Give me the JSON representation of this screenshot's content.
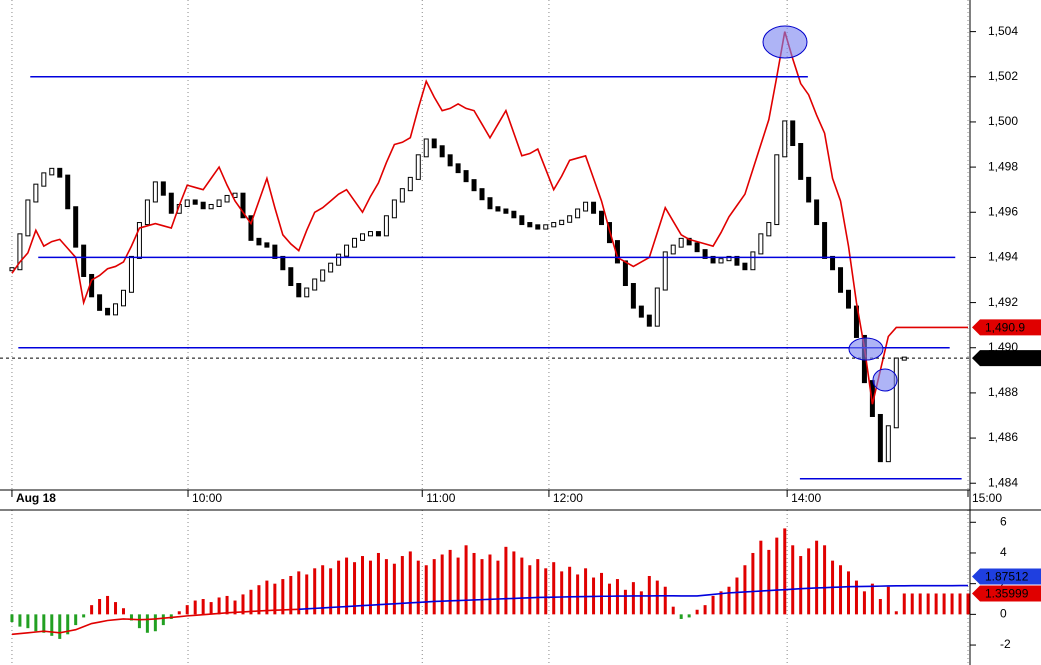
{
  "chart_data": [
    {
      "type": "price",
      "xlim": [
        -1.5,
        120
      ],
      "xticks": [
        {
          "value": 0,
          "label": "Aug 18"
        },
        {
          "value": 22.1,
          "label": "10:00"
        },
        {
          "value": 51.5,
          "label": "11:00"
        },
        {
          "value": 67.4,
          "label": "12:00"
        },
        {
          "value": 97.3,
          "label": "14:00"
        },
        {
          "value": 120,
          "label": "15:00"
        }
      ],
      "ylim": [
        1483.7,
        1505.4
      ],
      "yticks": [
        {
          "value": 1484,
          "label": "1,484"
        },
        {
          "value": 1486,
          "label": "1,486"
        },
        {
          "value": 1488,
          "label": "1,488"
        },
        {
          "value": 1490,
          "label": "1,490"
        },
        {
          "value": 1492,
          "label": "1,492"
        },
        {
          "value": 1494,
          "label": "1,494"
        },
        {
          "value": 1496,
          "label": "1,496"
        },
        {
          "value": 1498,
          "label": "1,498"
        },
        {
          "value": 1500,
          "label": "1,500"
        },
        {
          "value": 1502,
          "label": "1,502"
        },
        {
          "value": 1504,
          "label": "1,504"
        }
      ],
      "series": [
        {
          "style": "candle",
          "color": "#000000",
          "values": [
            1493.5,
            1495.0,
            1496.5,
            1497.2,
            1497.7,
            1497.9,
            1497.6,
            1496.2,
            1494.5,
            1493.2,
            1492.3,
            1491.7,
            1491.5,
            1491.9,
            1492.5,
            1494.0,
            1495.5,
            1496.5,
            1497.3,
            1496.8,
            1496.0,
            1496.3,
            1496.5,
            1496.4,
            1496.2,
            1496.3,
            1496.5,
            1496.7,
            1496.8,
            1495.8,
            1494.8,
            1494.6,
            1494.5,
            1494.0,
            1493.5,
            1492.8,
            1492.3,
            1492.6,
            1493.0,
            1493.4,
            1493.7,
            1494.1,
            1494.5,
            1494.8,
            1495.0,
            1495.1,
            1495.0,
            1495.8,
            1496.5,
            1497.0,
            1497.5,
            1498.5,
            1499.2,
            1498.9,
            1498.5,
            1498.1,
            1497.8,
            1497.4,
            1497.0,
            1496.6,
            1496.2,
            1496.1,
            1496.0,
            1495.8,
            1495.5,
            1495.4,
            1495.3,
            1495.4,
            1495.5,
            1495.6,
            1495.8,
            1496.1,
            1496.4,
            1496.0,
            1495.5,
            1494.7,
            1493.8,
            1492.8,
            1491.8,
            1491.4,
            1491.0,
            1492.6,
            1494.2,
            1494.5,
            1494.8,
            1494.6,
            1494.3,
            1494.0,
            1493.8,
            1493.9,
            1494.0,
            1493.7,
            1493.5,
            1494.2,
            1495.0,
            1495.5,
            1498.5,
            1500.0,
            1499.0,
            1497.5,
            1496.5,
            1495.5,
            1494.0,
            1493.5,
            1492.5,
            1491.8,
            1490.5,
            1488.5,
            1487.0,
            1485.0,
            1486.5,
            1489.5,
            1489.54,
            null,
            null,
            null,
            null,
            null,
            null,
            null,
            null
          ]
        },
        {
          "style": "line",
          "color": "#e00000",
          "values": [
            1493.3,
            1493.8,
            1494.2,
            1495.2,
            1494.5,
            1494.7,
            1494.8,
            1494.4,
            1494.0,
            1492.0,
            1493.0,
            1493.2,
            1493.5,
            1493.6,
            1493.8,
            1494.5,
            1495.3,
            1495.4,
            1495.5,
            1495.4,
            1495.3,
            1496.3,
            1497.2,
            1497.1,
            1497.0,
            1497.5,
            1498.0,
            1497.2,
            1496.5,
            1496.0,
            1495.5,
            1496.5,
            1497.5,
            1496.2,
            1495.0,
            1494.6,
            1494.3,
            1495.2,
            1496.0,
            1496.2,
            1496.5,
            1496.8,
            1497.0,
            1496.5,
            1496.0,
            1496.7,
            1497.3,
            1498.2,
            1499.0,
            1499.1,
            1499.3,
            1500.6,
            1501.8,
            1501.1,
            1500.5,
            1500.6,
            1500.8,
            1500.6,
            1500.5,
            1499.9,
            1499.3,
            1499.9,
            1500.5,
            1499.5,
            1498.5,
            1498.6,
            1498.8,
            1497.9,
            1497.0,
            1497.6,
            1498.3,
            1498.4,
            1498.5,
            1497.5,
            1496.5,
            1495.2,
            1494.0,
            1493.8,
            1493.6,
            1493.8,
            1494.0,
            1495.1,
            1496.2,
            1495.6,
            1495.0,
            1494.8,
            1494.7,
            1494.6,
            1494.5,
            1495.1,
            1495.8,
            1496.3,
            1496.8,
            1497.9,
            1499.0,
            1500.1,
            1502.0,
            1504.0,
            1502.8,
            1501.7,
            1501.2,
            1500.3,
            1499.5,
            1497.5,
            1496.5,
            1494.5,
            1492.0,
            1490.0,
            1487.5,
            1489.0,
            1490.5,
            1490.9,
            1490.9,
            1490.9,
            1490.9,
            1490.9,
            1490.9,
            1490.9,
            1490.9,
            1490.9,
            1490.9
          ]
        }
      ],
      "hlines": [
        {
          "value": 1502,
          "x": [
            2.3,
            99.9
          ],
          "color": "#0000dd"
        },
        {
          "value": 1494,
          "x": [
            3.3,
            118.4
          ],
          "color": "#0000dd"
        },
        {
          "value": 1490,
          "x": [
            0.8,
            117.7
          ],
          "color": "#0000dd"
        },
        {
          "value": 1484.2,
          "x": [
            98.9,
            119.2
          ],
          "color": "#0000dd"
        }
      ],
      "last_labels": [
        {
          "value": 1490.9,
          "label": "1,490.9",
          "color": "#e00000"
        },
        {
          "value": 1489.54,
          "label": "1,489.54",
          "color": "#000000",
          "dashed": true
        }
      ]
    },
    {
      "type": "bar",
      "color": "#e00000",
      "negative_color": "#22a022",
      "ylim": [
        -3.3,
        6.8
      ],
      "yticks": [
        -2,
        0,
        2,
        4,
        6
      ],
      "values": [
        -0.5,
        -0.8,
        -0.9,
        -1.1,
        -1.2,
        -1.4,
        -1.6,
        -1.3,
        -0.7,
        -0.2,
        0.6,
        1.0,
        1.2,
        0.8,
        0.4,
        -0.4,
        -0.9,
        -1.2,
        -1.1,
        -0.7,
        -0.3,
        0.2,
        0.6,
        0.9,
        1.0,
        0.8,
        1.1,
        1.2,
        0.9,
        1.3,
        1.6,
        1.9,
        2.2,
        2.0,
        2.3,
        2.5,
        2.8,
        2.6,
        3.0,
        3.2,
        3.0,
        3.5,
        3.7,
        3.4,
        3.8,
        3.5,
        4.0,
        3.6,
        3.3,
        3.8,
        4.1,
        3.5,
        3.2,
        3.6,
        3.9,
        4.2,
        3.7,
        4.5,
        4.0,
        3.6,
        3.9,
        3.5,
        4.4,
        4.1,
        3.7,
        3.2,
        3.6,
        3.0,
        3.4,
        2.8,
        3.1,
        2.6,
        3.0,
        2.4,
        2.7,
        2.0,
        2.3,
        1.6,
        2.1,
        1.5,
        2.5,
        2.2,
        1.8,
        0.5,
        -0.3,
        -0.2,
        0.3,
        0.6,
        1.2,
        1.5,
        1.8,
        2.4,
        3.2,
        4.0,
        4.8,
        4.2,
        5.0,
        5.6,
        4.5,
        3.8,
        4.3,
        4.8,
        4.5,
        3.5,
        3.2,
        2.8,
        2.2,
        1.5,
        2.0,
        1.0,
        1.8,
        0.2,
        1.36,
        1.36,
        1.36,
        1.36,
        1.36,
        1.36,
        1.36,
        1.36,
        1.35999
      ],
      "series": [
        {
          "color": "#e00000",
          "values": [
            -1.3,
            -1.25,
            -1.2,
            -1.15,
            -1.1,
            -1.15,
            -1.2,
            -1.1,
            -1.0,
            -0.8,
            -0.6,
            -0.5,
            -0.4,
            -0.35,
            -0.3,
            -0.32,
            -0.35,
            -0.33,
            -0.3,
            -0.25,
            -0.2,
            -0.15,
            -0.1,
            -0.06,
            -0.02,
            0.02,
            0.06,
            0.1,
            0.13,
            0.16,
            0.19,
            0.22,
            0.25,
            0.27,
            0.29,
            0.31,
            0.33,
            null,
            null,
            null,
            null,
            null,
            null,
            null,
            null,
            null,
            null,
            null,
            null,
            null,
            null,
            null,
            null,
            null,
            null,
            null,
            null,
            null,
            null,
            null,
            null,
            null,
            null,
            null,
            null,
            null,
            null,
            null,
            null,
            null,
            null,
            null,
            null,
            null,
            null,
            null,
            null,
            null,
            null,
            null,
            null,
            null,
            null,
            null,
            null,
            null,
            null,
            null,
            null,
            null,
            null,
            null,
            null,
            null,
            null,
            null,
            null,
            null,
            null,
            null,
            null,
            null,
            null,
            null,
            null,
            null,
            null,
            null,
            null,
            null,
            null,
            null,
            null,
            null,
            null,
            null,
            null,
            null,
            null,
            null,
            null
          ]
        },
        {
          "color": "#0000dd",
          "values": [
            null,
            null,
            null,
            null,
            null,
            null,
            null,
            null,
            null,
            null,
            null,
            null,
            null,
            null,
            null,
            null,
            null,
            null,
            null,
            null,
            null,
            null,
            null,
            null,
            null,
            null,
            null,
            null,
            null,
            null,
            null,
            null,
            null,
            null,
            null,
            null,
            0.33,
            0.36,
            0.39,
            0.42,
            0.45,
            0.48,
            0.51,
            0.54,
            0.57,
            0.6,
            0.63,
            0.66,
            0.69,
            0.72,
            0.75,
            0.78,
            0.81,
            0.84,
            0.86,
            0.88,
            0.9,
            0.92,
            0.94,
            0.96,
            0.98,
            1.0,
            1.02,
            1.04,
            1.06,
            1.08,
            1.1,
            1.11,
            1.12,
            1.13,
            1.14,
            1.15,
            1.16,
            1.17,
            1.18,
            1.18,
            1.19,
            1.19,
            1.2,
            1.2,
            1.2,
            1.21,
            1.21,
            1.21,
            1.2,
            1.2,
            1.2,
            1.25,
            1.3,
            1.35,
            1.4,
            1.43,
            1.46,
            1.49,
            1.52,
            1.55,
            1.58,
            1.61,
            1.64,
            1.67,
            1.7,
            1.72,
            1.74,
            1.76,
            1.78,
            1.8,
            1.81,
            1.82,
            1.83,
            1.84,
            1.85,
            1.86,
            1.86,
            1.87,
            1.87,
            1.87,
            1.87,
            1.87,
            1.87,
            1.875,
            1.87512
          ]
        }
      ],
      "last_labels": [
        {
          "value": 1.87512,
          "label": "1.87512",
          "color": "#1f3fe0"
        },
        {
          "value": 1.35999,
          "label": "1.35999",
          "color": "#e00000"
        }
      ]
    }
  ]
}
